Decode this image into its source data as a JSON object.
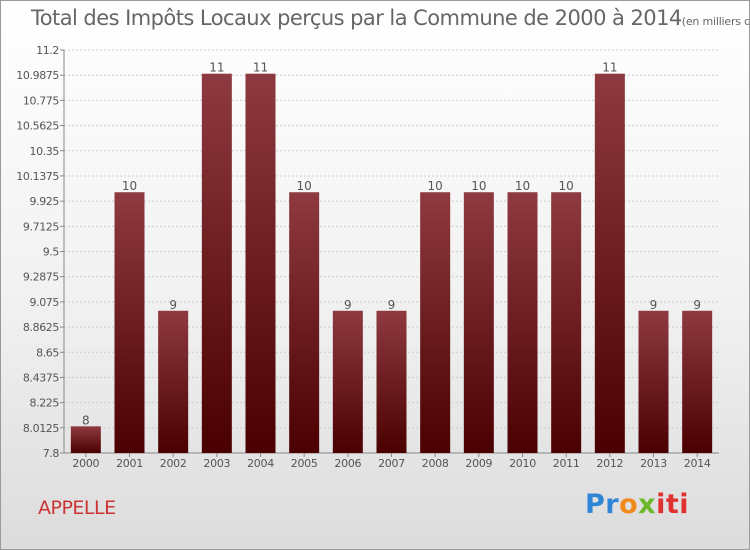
{
  "page": {
    "title": "Total des Impôts Locaux perçus par la Commune de 2000 à 2014",
    "unit": "(en milliers d'€)",
    "commune": "APPELLE",
    "logo": {
      "p1": "Pr",
      "p2": "o",
      "p3": "x",
      "p4": "iti"
    }
  },
  "chart_data": {
    "type": "bar",
    "title": "Total des Impôts Locaux perçus par la Commune de 2000 à 2014",
    "unit": "(en milliers d'€)",
    "xlabel": "",
    "ylabel": "",
    "categories": [
      "2000",
      "2001",
      "2002",
      "2003",
      "2004",
      "2005",
      "2006",
      "2007",
      "2008",
      "2009",
      "2010",
      "2011",
      "2012",
      "2013",
      "2014"
    ],
    "values": [
      8,
      10,
      9,
      11,
      11,
      10,
      9,
      9,
      10,
      10,
      10,
      10,
      11,
      9,
      9
    ],
    "bar_values": [
      8.025,
      10.0,
      9.0,
      11.0,
      11.0,
      10.0,
      9.0,
      9.0,
      10.0,
      10.0,
      10.0,
      10.0,
      11.0,
      9.0,
      9.0
    ],
    "data_labels": [
      "8",
      "10",
      "9",
      "11",
      "11",
      "10",
      "9",
      "9",
      "10",
      "10",
      "10",
      "10",
      "11",
      "9",
      "9"
    ],
    "ylim": [
      7.8,
      11.2
    ],
    "yticks": [
      "7.8",
      "8.0125",
      "8.225",
      "8.4375",
      "8.65",
      "8.8625",
      "9.075",
      "9.2875",
      "9.5",
      "9.7125",
      "9.925",
      "10.1375",
      "10.35",
      "10.5625",
      "10.775",
      "10.9875",
      "11.2"
    ],
    "ytick_values": [
      7.8,
      8.0125,
      8.225,
      8.4375,
      8.65,
      8.8625,
      9.075,
      9.2875,
      9.5,
      9.7125,
      9.925,
      10.1375,
      10.35,
      10.5625,
      10.775,
      10.9875,
      11.2
    ],
    "grid": true,
    "colors": {
      "bar_top": "#8e3a40",
      "bar_bottom": "#4a0000",
      "text": "#555555",
      "grid": "#cccccc"
    }
  }
}
